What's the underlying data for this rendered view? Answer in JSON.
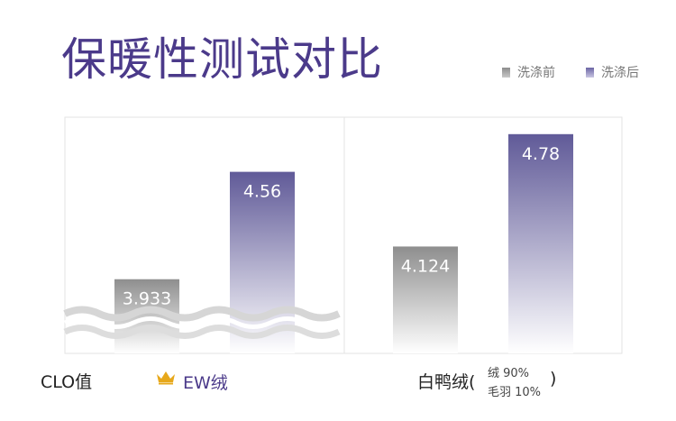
{
  "title": "保暖性测试对比",
  "legend": [
    {
      "label": "洗涤前",
      "color": "#8c8c8c"
    },
    {
      "label": "洗涤后",
      "color": "#7a74a8"
    }
  ],
  "footer": {
    "y_label": "CLO值",
    "group1_label": "EW绒",
    "group2_label": "白鸭绒(",
    "group2_composition": [
      "绒 90%",
      "毛羽 10%"
    ],
    "group2_close": ")"
  },
  "colors": {
    "accent_purple": "#4b3a8a",
    "crown_gold": "#e7a81b",
    "before_top": "#8e8e8e",
    "after_top": "#605a98"
  },
  "chart_data": {
    "type": "bar",
    "categories": [
      "EW绒",
      "白鸭绒"
    ],
    "series": [
      {
        "name": "洗涤前",
        "values": [
          3.933,
          4.124
        ]
      },
      {
        "name": "洗涤后",
        "values": [
          4.56,
          4.78
        ]
      }
    ],
    "value_labels": [
      [
        "3.933",
        "4.124"
      ],
      [
        "4.56",
        "4.78"
      ]
    ],
    "ylim": [
      3.5,
      4.8
    ],
    "grid": false,
    "legend_position": "top-right"
  }
}
